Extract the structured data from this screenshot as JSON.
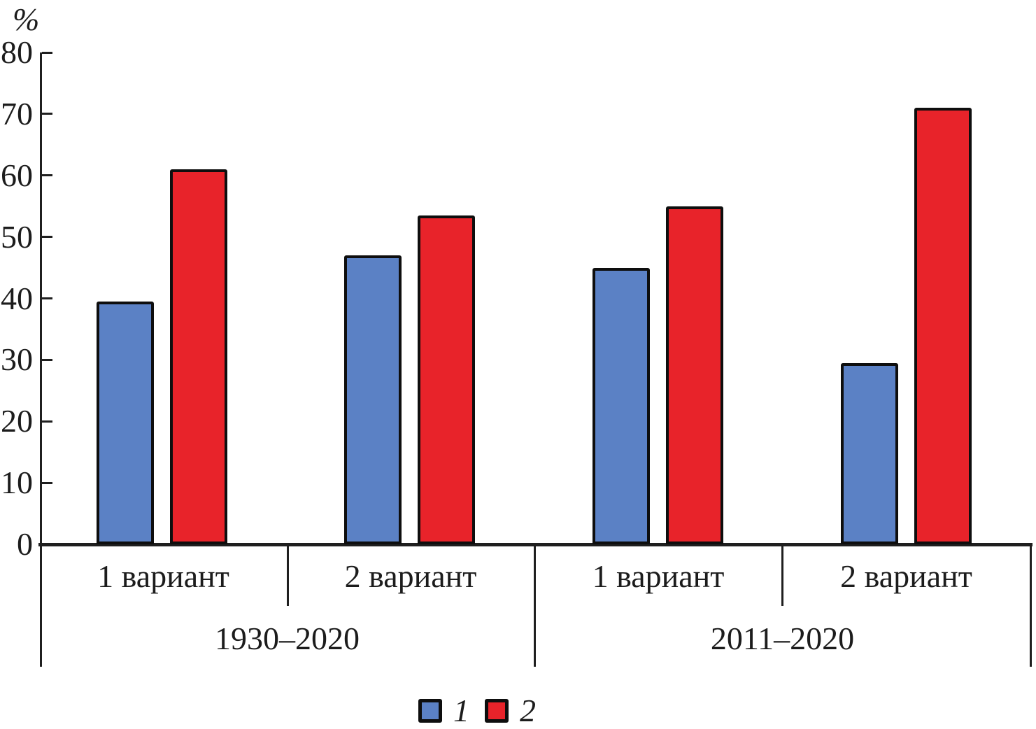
{
  "chart_data": {
    "type": "bar",
    "title": "",
    "ylabel": "%",
    "xlabel": "",
    "ylim": [
      0,
      80
    ],
    "yticks": [
      0,
      10,
      20,
      30,
      40,
      50,
      60,
      70,
      80
    ],
    "grid": false,
    "legend_position": "bottom-center",
    "group_labels": [
      "1 вариант",
      "2 вариант",
      "1 вариант",
      "2 вариант"
    ],
    "sections": [
      {
        "label": "1930–2020",
        "groups": [
          "1 вариант",
          "2 вариант"
        ]
      },
      {
        "label": "2011–2020",
        "groups": [
          "1 вариант",
          "2 вариант"
        ]
      }
    ],
    "series": [
      {
        "name": "1",
        "color": "#5b81c5",
        "values": [
          39.5,
          47,
          45,
          29.5
        ]
      },
      {
        "name": "2",
        "color": "#e8232a",
        "values": [
          61,
          53.5,
          55,
          71
        ]
      }
    ],
    "legend": [
      {
        "label": "1",
        "color": "#5b81c5"
      },
      {
        "label": "2",
        "color": "#e8232a"
      }
    ],
    "colors": {
      "axis": "#1f1f1f",
      "bar_border": "#0e0e0e",
      "text": "#1c1c1c"
    }
  }
}
